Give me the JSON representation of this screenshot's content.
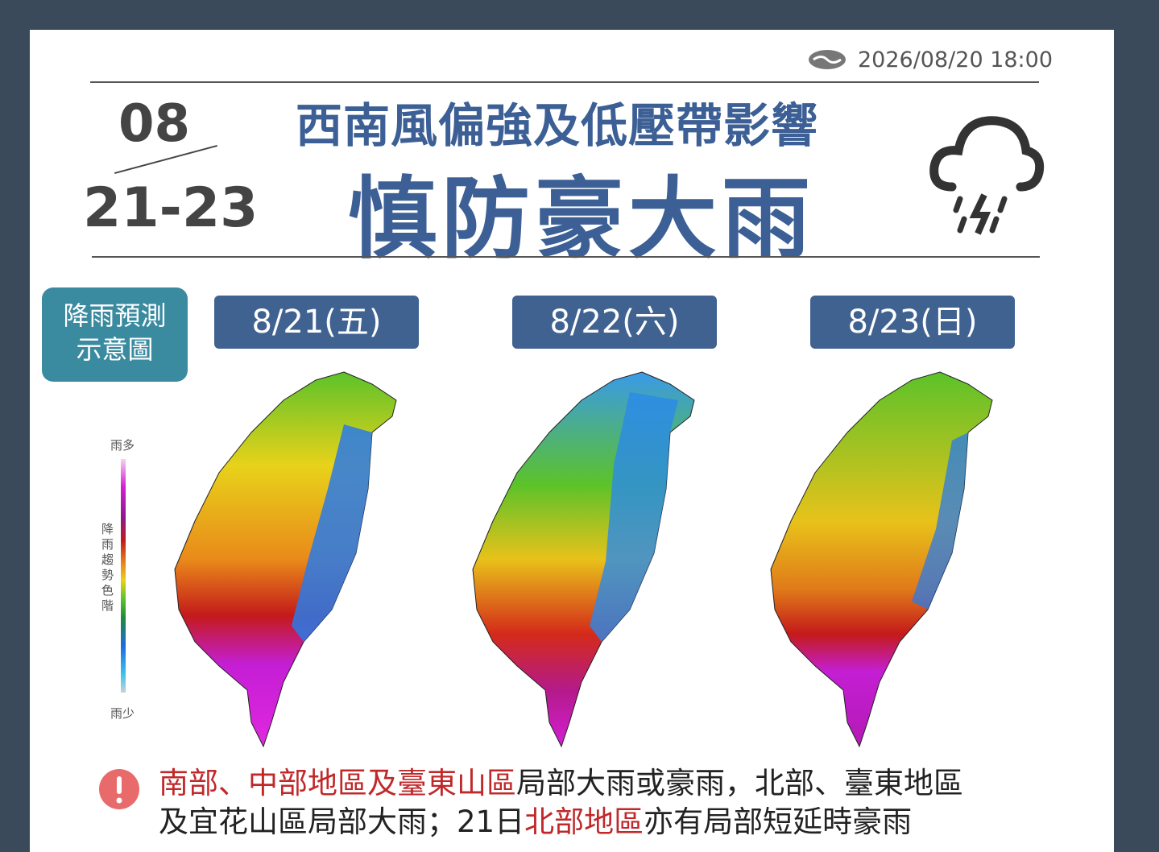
{
  "header": {
    "timestamp": "2026/08/20 18:00",
    "month": "08",
    "days": "21-23",
    "subtitle": "西南風偏強及低壓帶影響",
    "title": "慎防豪大雨"
  },
  "badge": {
    "lines": [
      "降雨預測",
      "示意圖"
    ]
  },
  "legend": {
    "top": "雨多",
    "label": "降雨趨勢色階",
    "bottom": "雨少"
  },
  "panels": [
    {
      "date": "8/21(五)"
    },
    {
      "date": "8/22(六)"
    },
    {
      "date": "8/23(日)"
    }
  ],
  "note": {
    "lines": [
      [
        {
          "text": "南部、中部地區及臺東山區",
          "highlight": true
        },
        {
          "text": "局部大雨或豪雨，北部、臺東地區",
          "highlight": false
        }
      ],
      [
        {
          "text": "及宜花山區局部大雨；21日",
          "highlight": false
        },
        {
          "text": "北部地區",
          "highlight": true
        },
        {
          "text": "亦有局部短延時豪雨",
          "highlight": false
        }
      ]
    ]
  }
}
